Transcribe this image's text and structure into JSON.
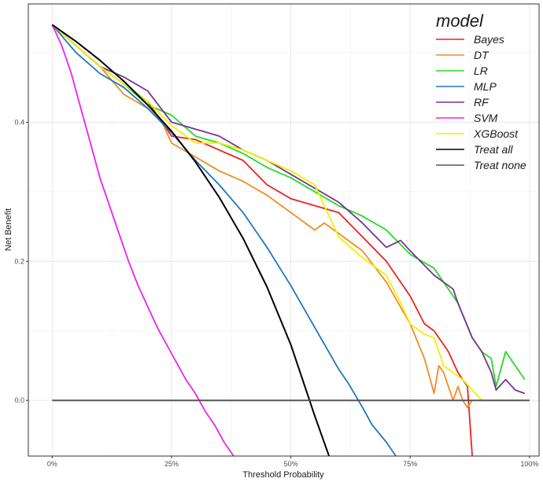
{
  "chart_data": {
    "type": "line",
    "title": "",
    "xlabel": "Threshold Probability",
    "ylabel": "Net Benefit",
    "xlim": [
      -0.05,
      1.02
    ],
    "ylim": [
      -0.08,
      0.57
    ],
    "x_ticks": [
      0,
      0.25,
      0.5,
      0.75,
      1.0
    ],
    "x_tick_labels": [
      "0%",
      "25%",
      "50%",
      "75%",
      "100%"
    ],
    "y_ticks": [
      0.0,
      0.2,
      0.4
    ],
    "y_tick_labels": [
      "0.0",
      "0.2",
      "0.4"
    ],
    "grid": true,
    "legend_position": "top-right",
    "legend_title": "model",
    "series": [
      {
        "name": "Bayes",
        "color": "#ee2222",
        "x": [
          0,
          0.05,
          0.1,
          0.15,
          0.2,
          0.25,
          0.3,
          0.35,
          0.4,
          0.45,
          0.5,
          0.55,
          0.6,
          0.65,
          0.7,
          0.75,
          0.78,
          0.8,
          0.83,
          0.85,
          0.87,
          0.88
        ],
        "y": [
          0.54,
          0.51,
          0.48,
          0.455,
          0.43,
          0.38,
          0.375,
          0.36,
          0.345,
          0.31,
          0.29,
          0.28,
          0.27,
          0.235,
          0.2,
          0.15,
          0.11,
          0.1,
          0.07,
          0.04,
          0.02,
          -0.08
        ]
      },
      {
        "name": "DT",
        "color": "#f28c28",
        "x": [
          0,
          0.05,
          0.1,
          0.15,
          0.2,
          0.23,
          0.25,
          0.3,
          0.35,
          0.4,
          0.45,
          0.5,
          0.55,
          0.57,
          0.6,
          0.65,
          0.7,
          0.75,
          0.78,
          0.8,
          0.81,
          0.82,
          0.84,
          0.85,
          0.86,
          0.87,
          0.88
        ],
        "y": [
          0.54,
          0.51,
          0.48,
          0.44,
          0.42,
          0.4,
          0.37,
          0.35,
          0.33,
          0.315,
          0.295,
          0.27,
          0.245,
          0.255,
          0.24,
          0.215,
          0.17,
          0.11,
          0.06,
          0.01,
          0.05,
          0.04,
          0.0,
          0.02,
          0.0,
          -0.01,
          0.0
        ]
      },
      {
        "name": "LR",
        "color": "#22dd22",
        "x": [
          0,
          0.05,
          0.1,
          0.15,
          0.2,
          0.25,
          0.3,
          0.35,
          0.4,
          0.45,
          0.5,
          0.55,
          0.6,
          0.65,
          0.7,
          0.75,
          0.8,
          0.85,
          0.88,
          0.9,
          0.92,
          0.93,
          0.95,
          0.97,
          0.99
        ],
        "y": [
          0.54,
          0.51,
          0.48,
          0.455,
          0.425,
          0.41,
          0.38,
          0.37,
          0.355,
          0.335,
          0.32,
          0.3,
          0.28,
          0.265,
          0.245,
          0.21,
          0.19,
          0.14,
          0.09,
          0.07,
          0.06,
          0.02,
          0.07,
          0.05,
          0.03
        ]
      },
      {
        "name": "MLP",
        "color": "#1f77c0",
        "x": [
          0,
          0.05,
          0.1,
          0.15,
          0.2,
          0.25,
          0.3,
          0.35,
          0.4,
          0.45,
          0.5,
          0.55,
          0.6,
          0.62,
          0.65,
          0.67,
          0.7,
          0.72
        ],
        "y": [
          0.54,
          0.5,
          0.47,
          0.45,
          0.42,
          0.385,
          0.345,
          0.31,
          0.27,
          0.22,
          0.165,
          0.105,
          0.045,
          0.025,
          -0.01,
          -0.035,
          -0.06,
          -0.08
        ]
      },
      {
        "name": "RF",
        "color": "#7b3294",
        "x": [
          0,
          0.05,
          0.1,
          0.15,
          0.2,
          0.25,
          0.3,
          0.35,
          0.4,
          0.45,
          0.5,
          0.55,
          0.6,
          0.65,
          0.7,
          0.73,
          0.75,
          0.8,
          0.84,
          0.85,
          0.88,
          0.9,
          0.92,
          0.93,
          0.95,
          0.97,
          0.99
        ],
        "y": [
          0.54,
          0.51,
          0.48,
          0.465,
          0.445,
          0.4,
          0.39,
          0.38,
          0.36,
          0.345,
          0.325,
          0.305,
          0.285,
          0.255,
          0.22,
          0.23,
          0.215,
          0.18,
          0.16,
          0.14,
          0.09,
          0.07,
          0.04,
          0.015,
          0.03,
          0.015,
          0.01
        ]
      },
      {
        "name": "SVM",
        "color": "#ee22ee",
        "x": [
          0,
          0.02,
          0.04,
          0.06,
          0.08,
          0.1,
          0.12,
          0.14,
          0.16,
          0.18,
          0.2,
          0.22,
          0.24,
          0.26,
          0.28,
          0.3,
          0.32,
          0.34,
          0.36,
          0.38
        ],
        "y": [
          0.54,
          0.51,
          0.47,
          0.42,
          0.37,
          0.32,
          0.28,
          0.24,
          0.2,
          0.165,
          0.135,
          0.105,
          0.08,
          0.055,
          0.03,
          0.01,
          -0.015,
          -0.035,
          -0.06,
          -0.08
        ]
      },
      {
        "name": "XGBoost",
        "color": "#f0f000",
        "x": [
          0,
          0.05,
          0.1,
          0.15,
          0.2,
          0.25,
          0.3,
          0.35,
          0.4,
          0.45,
          0.5,
          0.55,
          0.58,
          0.6,
          0.65,
          0.7,
          0.73,
          0.75,
          0.78,
          0.8,
          0.82,
          0.84,
          0.86,
          0.88,
          0.9,
          0.92,
          0.95,
          0.99
        ],
        "y": [
          0.54,
          0.51,
          0.48,
          0.455,
          0.43,
          0.395,
          0.37,
          0.37,
          0.36,
          0.345,
          0.33,
          0.31,
          0.265,
          0.235,
          0.205,
          0.18,
          0.14,
          0.11,
          0.095,
          0.09,
          0.05,
          0.04,
          0.03,
          0.015,
          0.0,
          0.0,
          0.0,
          0.0
        ]
      },
      {
        "name": "Treat all",
        "color": "#000000",
        "x": [
          0,
          0.05,
          0.1,
          0.15,
          0.2,
          0.25,
          0.3,
          0.35,
          0.4,
          0.45,
          0.5,
          0.55,
          0.58
        ],
        "y": [
          0.54,
          0.516,
          0.489,
          0.459,
          0.425,
          0.387,
          0.343,
          0.292,
          0.233,
          0.163,
          0.08,
          -0.022,
          -0.08
        ]
      },
      {
        "name": "Treat none",
        "color": "#555555",
        "x": [
          0,
          1.0
        ],
        "y": [
          0,
          0
        ]
      }
    ]
  }
}
